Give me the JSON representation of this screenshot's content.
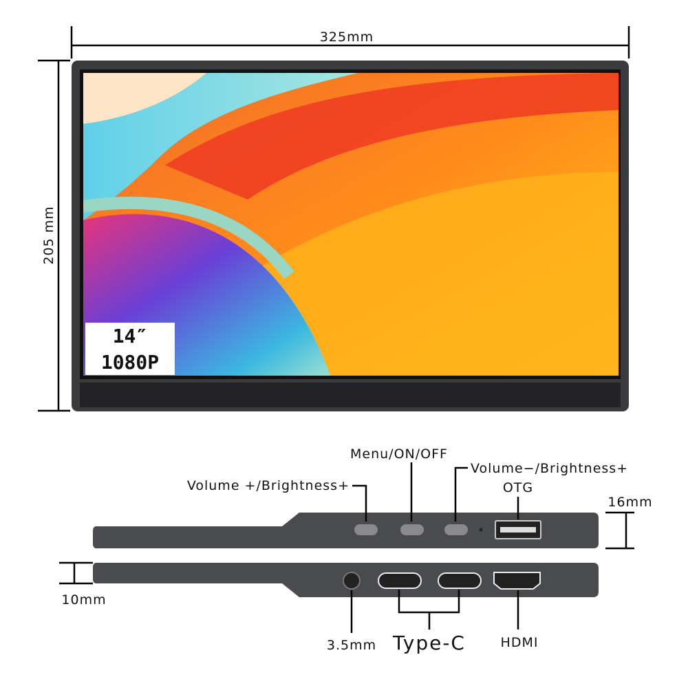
{
  "dimensions": {
    "width": "325mm",
    "height": "205 mm",
    "thickness_max": "16mm",
    "thickness_min": "10mm"
  },
  "screen": {
    "size": "14″",
    "resolution": "1080P"
  },
  "buttons": {
    "menu": "Menu/ON/OFF",
    "volume_up": "Volume +/Brightness+",
    "volume_down": "Volume−/Brightness+",
    "usb": "OTG"
  },
  "ports": {
    "audio": "3.5mm",
    "usb_c": "Type-C",
    "hdmi": "HDMI"
  }
}
